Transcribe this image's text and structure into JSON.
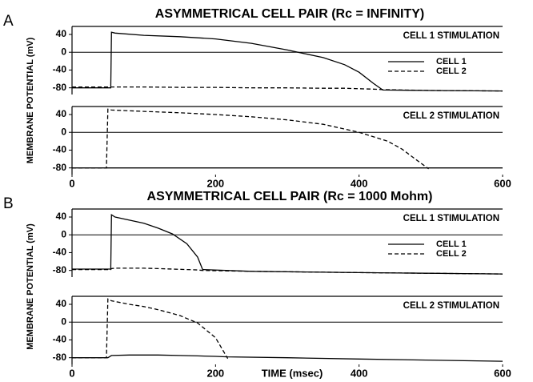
{
  "chart_data": [
    {
      "type": "line",
      "panel_label": "A",
      "title": "ASYMMETRICAL CELL PAIR (Rc = INFINITY)",
      "ylabel": "MEMBRANE POTENTIAL (mV)",
      "annotation": "CELL 1 STIMULATION",
      "legend": true,
      "legend_position": "right",
      "xlim": [
        0,
        600
      ],
      "ylim": [
        -95,
        58
      ],
      "yticks": [
        40,
        0,
        -40,
        -80
      ],
      "zero_line": true,
      "x": [
        0,
        54,
        55,
        60,
        100,
        150,
        200,
        250,
        300,
        350,
        380,
        400,
        420,
        433,
        500,
        600
      ],
      "series": [
        {
          "name": "CELL 1",
          "color": "#000000",
          "dashed": false,
          "values": [
            -80,
            -80,
            45,
            43,
            38,
            35,
            30,
            20,
            5,
            -12,
            -28,
            -45,
            -70,
            -85,
            -86,
            -87
          ]
        },
        {
          "name": "CELL 2",
          "color": "#000000",
          "dashed": true,
          "values": [
            -78,
            -78,
            -78,
            -78,
            -78,
            -79,
            -79,
            -80,
            -80,
            -81,
            -81,
            -82,
            -83,
            -84,
            -86,
            -87
          ]
        }
      ]
    },
    {
      "type": "line",
      "annotation": "CELL 2 STIMULATION",
      "legend": false,
      "xlim": [
        0,
        600
      ],
      "ylim": [
        -95,
        58
      ],
      "yticks": [
        40,
        0,
        -40,
        -80
      ],
      "xticks": [
        0,
        200,
        400,
        600
      ],
      "zero_line": true,
      "x": [
        0,
        48,
        50,
        55,
        100,
        150,
        200,
        250,
        300,
        350,
        400,
        440,
        460,
        480,
        497,
        600
      ],
      "series": [
        {
          "color": "#000000",
          "dashed": false,
          "values": [
            -80,
            -80,
            -80,
            -80,
            -80,
            -80,
            -80,
            -80,
            -80,
            -80,
            -80,
            -80,
            -80,
            -80,
            -80,
            -80
          ]
        },
        {
          "color": "#000000",
          "dashed": true,
          "values": [
            -80,
            -80,
            52,
            50,
            47,
            44,
            40,
            35,
            28,
            18,
            0,
            -20,
            -38,
            -62,
            -82,
            null
          ]
        }
      ]
    },
    {
      "type": "line",
      "panel_label": "B",
      "title": "ASYMMETRICAL CELL PAIR (Rc = 1000 Mohm)",
      "ylabel": "MEMBRANE POTENTIAL (mV)",
      "annotation": "CELL 1 STIMULATION",
      "legend": true,
      "legend_position": "right",
      "xlim": [
        0,
        600
      ],
      "ylim": [
        -95,
        58
      ],
      "yticks": [
        40,
        0,
        -40,
        -80
      ],
      "zero_line": true,
      "x": [
        0,
        54,
        55,
        60,
        80,
        100,
        120,
        140,
        160,
        175,
        182,
        250,
        400,
        600
      ],
      "series": [
        {
          "name": "CELL 1",
          "color": "#000000",
          "dashed": false,
          "values": [
            -77,
            -77,
            45,
            40,
            33,
            26,
            15,
            2,
            -20,
            -50,
            -78,
            -82,
            -85,
            -88
          ]
        },
        {
          "name": "CELL 2",
          "color": "#000000",
          "dashed": true,
          "values": [
            -78,
            -78,
            -76,
            -75,
            -75,
            -75,
            -76,
            -77,
            -78,
            -79,
            -80,
            -82,
            -85,
            -88
          ]
        }
      ]
    },
    {
      "type": "line",
      "annotation": "CELL 2 STIMULATION",
      "legend": false,
      "xlabel": "TIME (msec)",
      "xlim": [
        0,
        600
      ],
      "ylim": [
        -95,
        58
      ],
      "yticks": [
        40,
        0,
        -40,
        -80
      ],
      "xticks": [
        0,
        200,
        400,
        600
      ],
      "zero_line": true,
      "x": [
        0,
        48,
        50,
        55,
        80,
        100,
        120,
        150,
        175,
        200,
        217,
        300,
        400,
        600
      ],
      "series": [
        {
          "color": "#000000",
          "dashed": false,
          "values": [
            -80,
            -80,
            -80,
            -75,
            -74,
            -74,
            -74,
            -75,
            -76,
            -77,
            -78,
            -80,
            -83,
            -88
          ]
        },
        {
          "color": "#000000",
          "dashed": true,
          "values": [
            -80,
            -80,
            52,
            48,
            40,
            35,
            28,
            15,
            -2,
            -35,
            -82,
            null,
            null,
            null
          ]
        }
      ]
    }
  ]
}
